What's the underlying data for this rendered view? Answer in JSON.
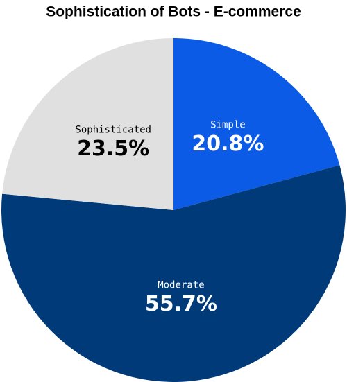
{
  "chart_data": {
    "type": "pie",
    "title": "Sophistication of Bots - E-commerce",
    "categories": [
      "Simple",
      "Moderate",
      "Sophisticated"
    ],
    "values": [
      20.8,
      55.7,
      23.5
    ],
    "value_labels": [
      "20.8%",
      "55.7%",
      "23.5%"
    ],
    "colors": [
      "#0b5be6",
      "#003a78",
      "#e0e0e0"
    ]
  }
}
